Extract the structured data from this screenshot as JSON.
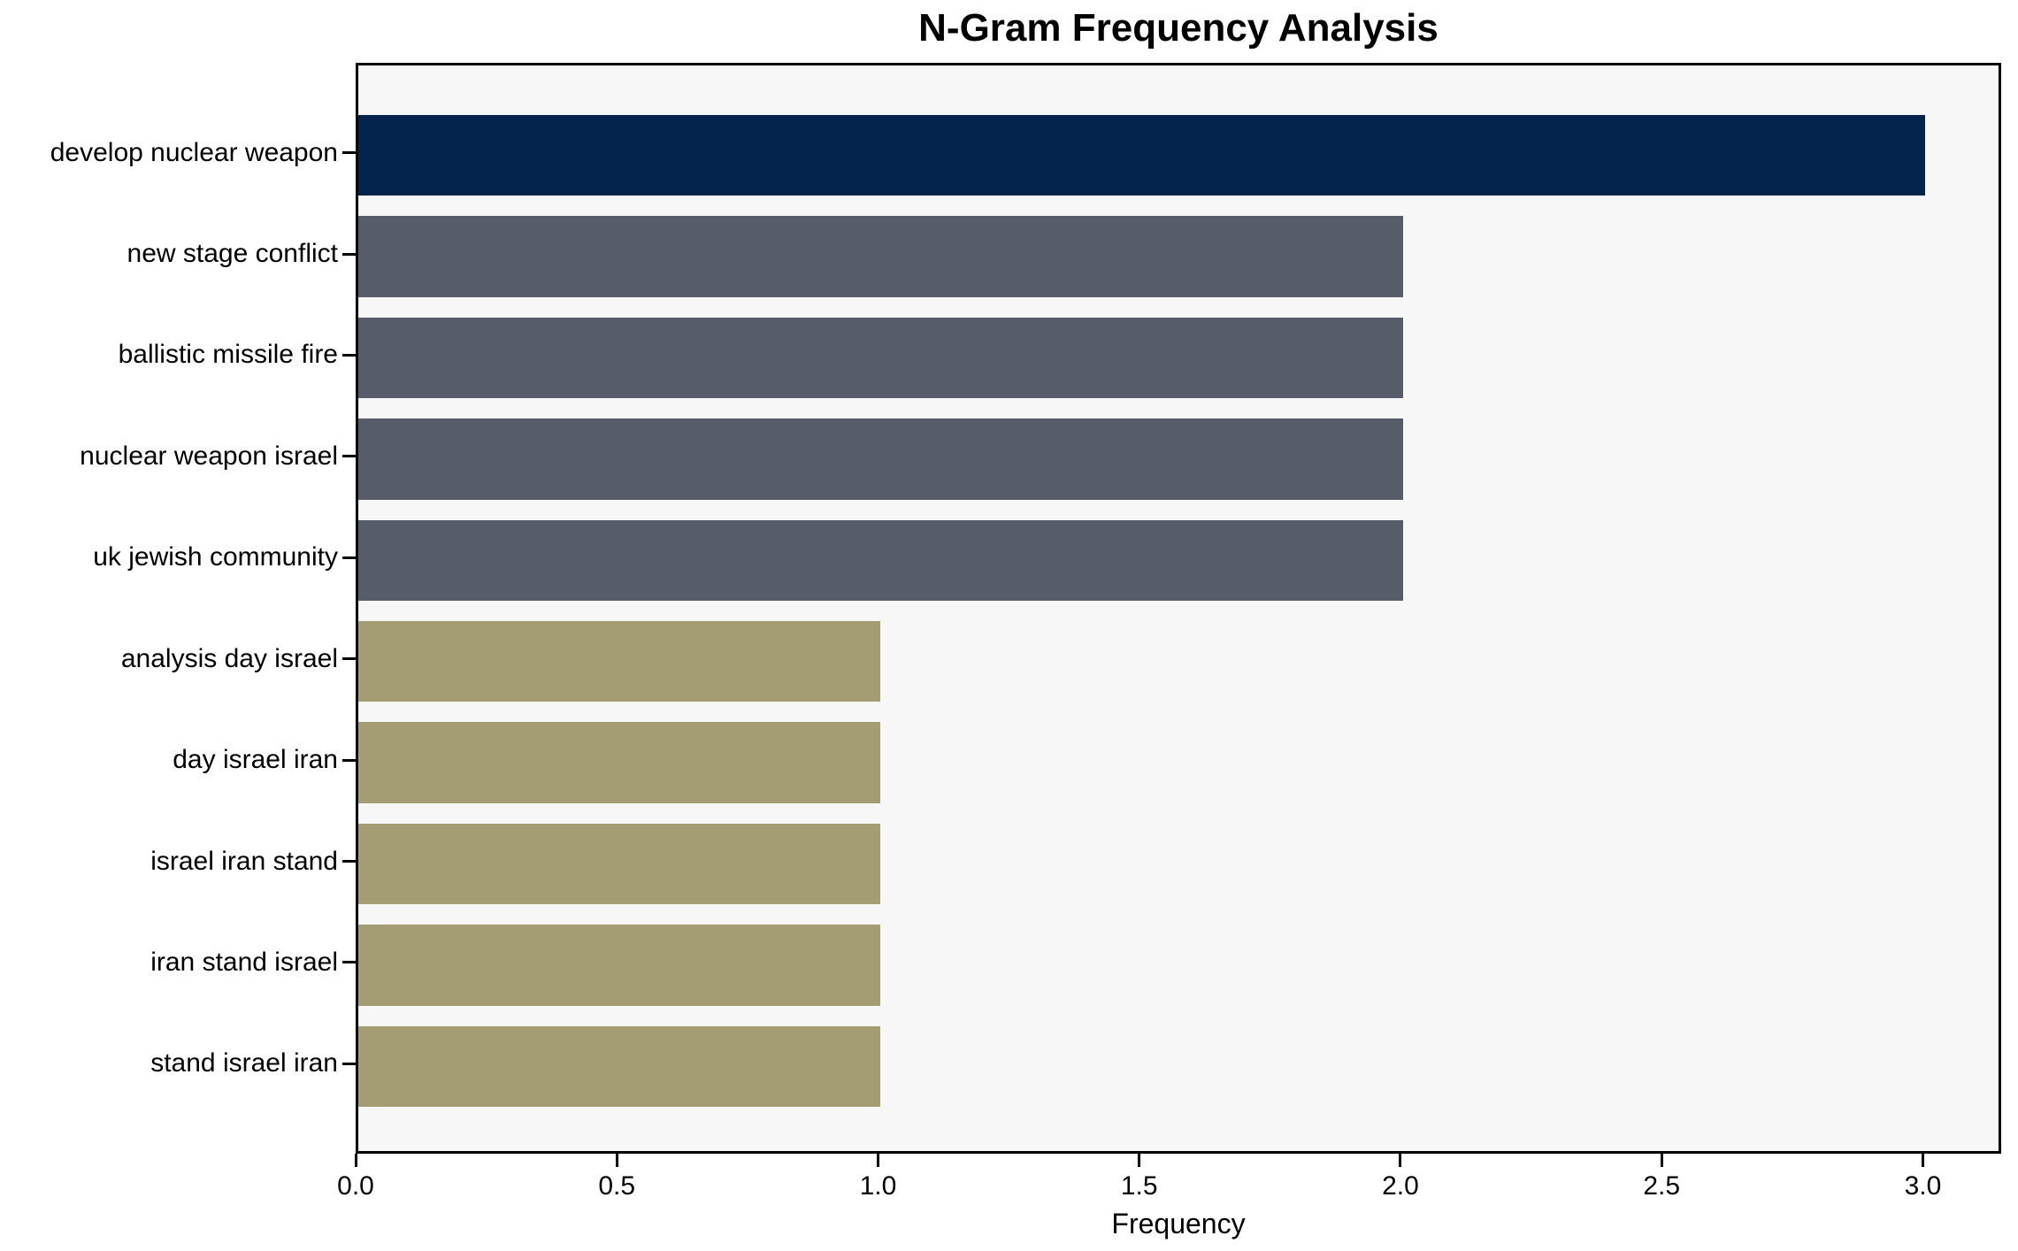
{
  "chart_data": {
    "type": "bar",
    "orientation": "horizontal",
    "title": "N-Gram Frequency Analysis",
    "xlabel": "Frequency",
    "ylabel": "",
    "categories": [
      "develop nuclear weapon",
      "new stage conflict",
      "ballistic missile fire",
      "nuclear weapon israel",
      "uk jewish community",
      "analysis day israel",
      "day israel iran",
      "israel iran stand",
      "iran stand israel",
      "stand israel iran"
    ],
    "values": [
      3,
      2,
      2,
      2,
      2,
      1,
      1,
      1,
      1,
      1
    ],
    "bar_colors": [
      "#04234d",
      "#565c6a",
      "#565c6a",
      "#565c6a",
      "#565c6a",
      "#a49c72",
      "#a49c72",
      "#a49c72",
      "#a49c72",
      "#a49c72"
    ],
    "xlim": [
      0,
      3.15
    ],
    "xticks": {
      "values": [
        0,
        0.5,
        1,
        1.5,
        2,
        2.5,
        3
      ],
      "labels": [
        "0.0",
        "0.5",
        "1.0",
        "1.5",
        "2.0",
        "2.5",
        "3.0"
      ]
    },
    "grid": false,
    "legend": "none",
    "colors": {
      "plot_background": "#f7f7f7",
      "figure_background": "#ffffff",
      "axis": "#000000",
      "text": "#000000"
    }
  }
}
